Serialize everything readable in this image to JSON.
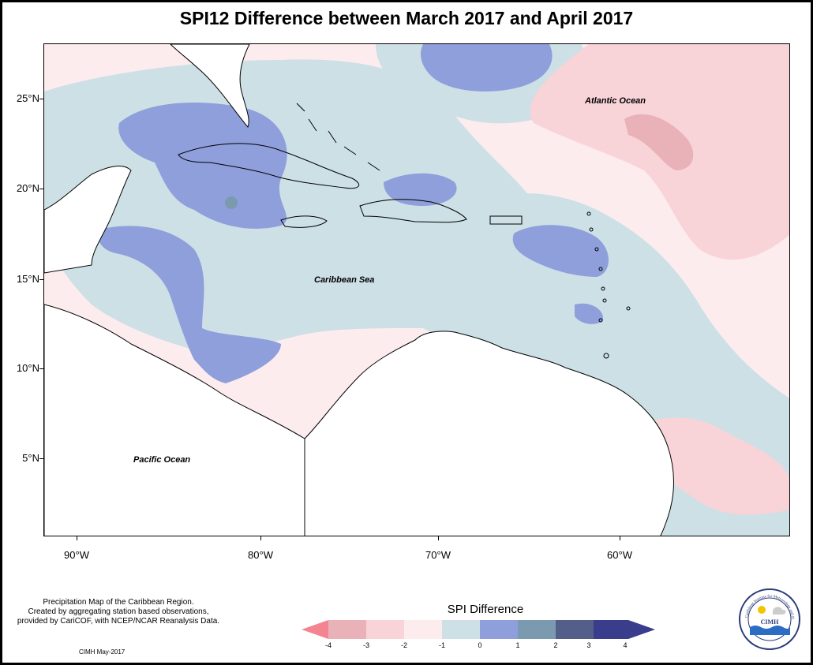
{
  "title": "SPI12 Difference between March 2017 and April 2017",
  "map": {
    "lat_labels": [
      "25°N",
      "20°N",
      "15°N",
      "10°N",
      "5°N"
    ],
    "lon_labels": [
      "90°W",
      "80°W",
      "70°W",
      "60°W"
    ],
    "places": {
      "atlantic": "Atlantic Ocean",
      "caribbean": "Caribbean Sea",
      "pacific": "Pacific Ocean"
    }
  },
  "legend": {
    "title": "SPI Difference",
    "ticks": [
      "-4",
      "-3",
      "-2",
      "-1",
      "0",
      "1",
      "2",
      "3",
      "4"
    ],
    "colors": [
      "#f4848f",
      "#e9b1b8",
      "#f8d3d8",
      "#fdecee",
      "#cde0e6",
      "#8f9fdc",
      "#7b9ab0",
      "#545f89",
      "#3a3c8c"
    ]
  },
  "notes": {
    "line1": "Precipitation Map of the Caribbean Region.",
    "line2": "Created by aggregating station based observations,",
    "line3": "provided by CariCOF, with NCEP/NCAR Reanalysis Data.",
    "credit": "CIMH May-2017"
  },
  "logo": {
    "text": "CIMH",
    "ring_text": "Caribbean Institute for Meteorology and Hydrology"
  }
}
